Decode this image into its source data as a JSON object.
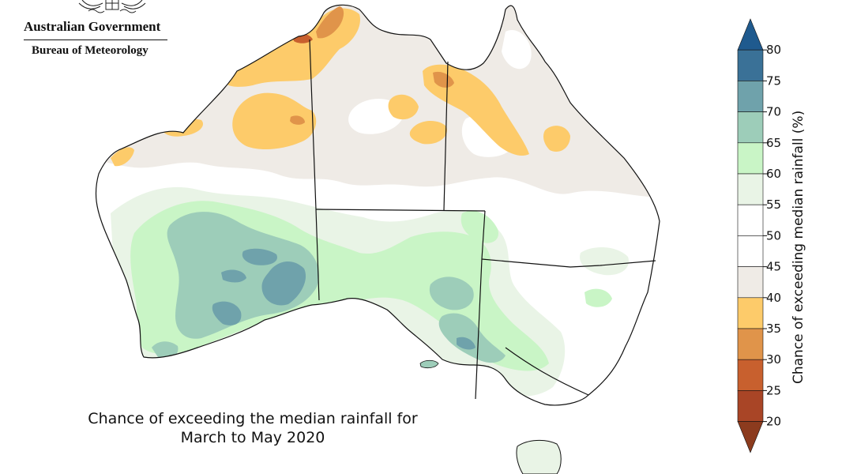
{
  "logo": {
    "government": "Australian Government",
    "bureau": "Bureau of Meteorology"
  },
  "caption": {
    "line1": "Chance of exceeding the median rainfall for",
    "line2": "March to May 2020"
  },
  "colorbar": {
    "title": "Chance of exceeding median rainfall (%)",
    "ticks": [
      "80",
      "75",
      "70",
      "65",
      "60",
      "55",
      "50",
      "45",
      "40",
      "35",
      "30",
      "25",
      "20"
    ],
    "bins": [
      {
        "range": "> 80",
        "color": "#1f5a8e"
      },
      {
        "range": "75-80",
        "color": "#3a7197"
      },
      {
        "range": "70-75",
        "color": "#6fa2ab"
      },
      {
        "range": "65-70",
        "color": "#9dcdb9"
      },
      {
        "range": "60-65",
        "color": "#c9f5c6"
      },
      {
        "range": "55-60",
        "color": "#e9f4e6"
      },
      {
        "range": "50-55",
        "color": "#ffffff"
      },
      {
        "range": "45-50",
        "color": "#ffffff"
      },
      {
        "range": "40-45",
        "color": "#efebe6"
      },
      {
        "range": "35-40",
        "color": "#fdcb6a"
      },
      {
        "range": "30-35",
        "color": "#e0944a"
      },
      {
        "range": "25-30",
        "color": "#c8602e"
      },
      {
        "range": "20-25",
        "color": "#a94526"
      },
      {
        "range": "< 20",
        "color": "#8c3b1e"
      }
    ]
  }
}
